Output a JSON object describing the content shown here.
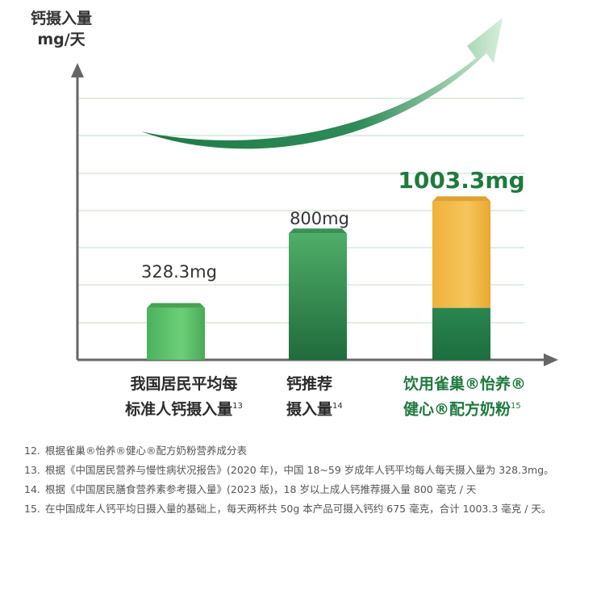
{
  "chart_data": {
    "type": "bar",
    "ylabel_line1": "钙摄入量",
    "ylabel_line2": "mg/天",
    "categories": [
      {
        "line1": "我国居民平均每",
        "line2": "标准人钙摄入量",
        "ref": "13"
      },
      {
        "line1": "钙推荐",
        "line2": "摄入量",
        "ref": "14"
      },
      {
        "line1": "饮用雀巢®怡养®",
        "line2": "健心®配方奶粉",
        "ref": "15"
      }
    ],
    "values": [
      328.3,
      800,
      1003.3
    ],
    "stacked_parts": {
      "base": 328.3,
      "added": 675
    },
    "data_labels": [
      "328.3mg",
      "800mg",
      "1003.3mg"
    ],
    "colors": {
      "bar_light_green": "#5cc06a",
      "bar_dark_green": "#1f7a45",
      "bar_gold": "#f2b741",
      "arrow_green": "#2e8b57",
      "grid": "#b8e0c0",
      "axis": "#666666"
    }
  },
  "notes": [
    {
      "num": "12.",
      "text": "根据雀巢®怡养®健心®配方奶粉营养成分表"
    },
    {
      "num": "13.",
      "text": "根据《中国居民营养与慢性病状况报告》(2020 年)，中国 18~59 岁成年人钙平均每人每天摄入量为 328.3mg。"
    },
    {
      "num": "14.",
      "text": "根据《中国居民膳食营养素参考摄入量》(2023 版)，18 岁以上成人钙推荐摄入量 800 毫克 / 天"
    },
    {
      "num": "15.",
      "text": "在中国成年人钙平均日摄入量的基础上，每天两杯共 50g 本产品可摄入钙约 675 毫克，合计 1003.3 毫克 / 天。"
    }
  ]
}
